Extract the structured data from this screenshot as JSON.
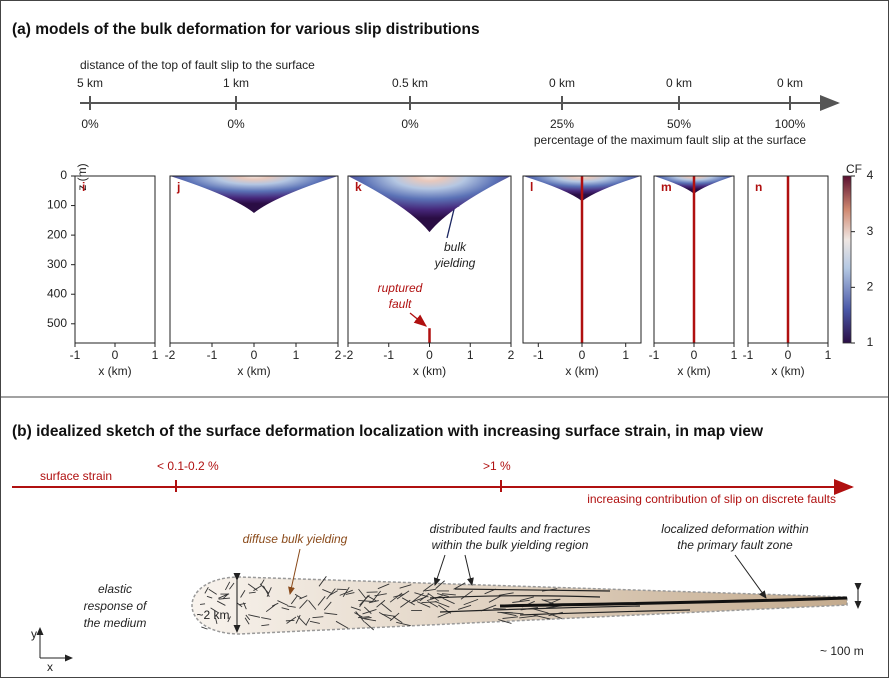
{
  "panel_a": {
    "title": "(a) models of the bulk deformation for various slip distributions",
    "distance_label": "distance of the top of fault slip to the surface",
    "distances": [
      "5 km",
      "1 km",
      "0.5 km",
      "0 km",
      "0 km",
      "0 km"
    ],
    "percentages": [
      "0%",
      "0%",
      "0%",
      "25%",
      "50%",
      "100%"
    ],
    "percentage_label": "percentage of the maximum fault slip at the surface",
    "plots": [
      {
        "label": "i",
        "xlim": [
          -1,
          1
        ],
        "xticks": [
          -1,
          0,
          1
        ]
      },
      {
        "label": "j",
        "xlim": [
          -2,
          2
        ],
        "xticks": [
          -2,
          -1,
          0,
          1,
          2
        ]
      },
      {
        "label": "k",
        "xlim": [
          -2,
          2
        ],
        "xticks": [
          -2,
          -1,
          0,
          1,
          2
        ]
      },
      {
        "label": "l",
        "xlim": [
          -1.35,
          1.35
        ],
        "xticks": [
          -1,
          0,
          1
        ]
      },
      {
        "label": "m",
        "xlim": [
          -1,
          1
        ],
        "xticks": [
          -1,
          0,
          1
        ]
      },
      {
        "label": "n",
        "xlim": [
          -1,
          1
        ],
        "xticks": [
          -1,
          0,
          1
        ]
      }
    ],
    "x_label": "x (km)",
    "z_label": "z (m)",
    "zlim": [
      0,
      565
    ],
    "zticks": [
      0,
      100,
      200,
      300,
      400,
      500
    ],
    "colorbar": {
      "label": "CF",
      "lim": [
        1,
        4
      ],
      "ticks": [
        1,
        2,
        3,
        4
      ]
    },
    "bulk_annotation": [
      "bulk",
      "yielding"
    ],
    "fault_annotation": [
      "ruptured",
      "fault"
    ]
  },
  "panel_b": {
    "title": "(b) idealized sketch of the surface deformation localization with increasing surface strain, in map view",
    "strain_label": "surface strain",
    "strain_ticks": [
      "< 0.1-0.2 %",
      ">1 %"
    ],
    "contribution_label": "increasing contribution of slip on discrete faults",
    "diffuse_label": "diffuse bulk yielding",
    "distributed_label": [
      "distributed faults and fractures",
      "within the bulk yielding region"
    ],
    "localized_label": [
      "localized deformation within",
      "the primary fault zone"
    ],
    "elastic_label": [
      "elastic",
      "response of",
      "the medium"
    ],
    "width_label": "~2 km",
    "zone_label": "~ 100 m",
    "axis_y": "y",
    "axis_x": "x"
  }
}
